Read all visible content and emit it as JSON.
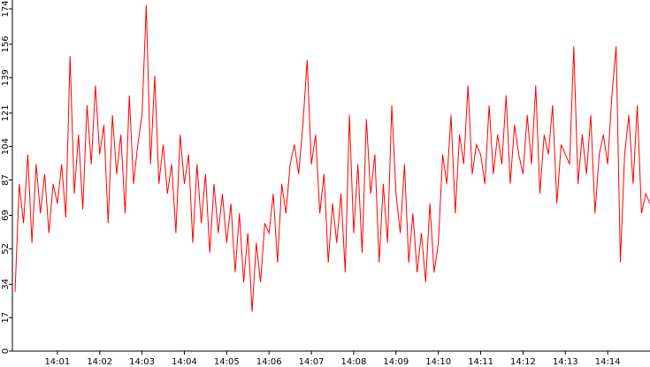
{
  "chart_data": {
    "type": "line",
    "color": "#ff0000",
    "x": [
      0,
      0.1,
      0.2,
      0.3,
      0.4,
      0.5,
      0.6,
      0.7,
      0.8,
      0.9,
      1,
      1.1,
      1.2,
      1.3,
      1.4,
      1.5,
      1.6,
      1.7,
      1.8,
      1.9,
      2,
      2.1,
      2.2,
      2.3,
      2.4,
      2.5,
      2.6,
      2.7,
      2.8,
      2.9,
      3,
      3.1,
      3.2,
      3.3,
      3.4,
      3.5,
      3.6,
      3.7,
      3.8,
      3.9,
      4,
      4.1,
      4.2,
      4.3,
      4.4,
      4.5,
      4.6,
      4.7,
      4.8,
      4.9,
      5,
      5.1,
      5.2,
      5.3,
      5.4,
      5.5,
      5.6,
      5.7,
      5.8,
      5.9,
      6,
      6.1,
      6.2,
      6.3,
      6.4,
      6.5,
      6.6,
      6.7,
      6.8,
      6.9,
      7,
      7.1,
      7.2,
      7.3,
      7.4,
      7.5,
      7.6,
      7.7,
      7.8,
      7.9,
      8,
      8.1,
      8.2,
      8.3,
      8.4,
      8.5,
      8.6,
      8.7,
      8.8,
      8.9,
      9,
      9.1,
      9.2,
      9.3,
      9.4,
      9.5,
      9.6,
      9.7,
      9.8,
      9.9,
      10,
      10.1,
      10.2,
      10.3,
      10.4,
      10.5,
      10.6,
      10.7,
      10.8,
      10.9,
      11,
      11.1,
      11.2,
      11.3,
      11.4,
      11.5,
      11.6,
      11.7,
      11.8,
      11.9,
      12,
      12.1,
      12.2,
      12.3,
      12.4,
      12.5,
      12.6,
      12.7,
      12.8,
      12.9,
      13,
      13.1,
      13.2,
      13.3,
      13.4,
      13.5,
      13.6,
      13.7,
      13.8,
      13.9,
      14,
      14.1,
      14.2,
      14.3,
      14.4,
      14.5,
      14.6,
      14.7,
      14.8,
      14.9,
      15
    ],
    "values": [
      30,
      85,
      65,
      100,
      55,
      95,
      70,
      90,
      60,
      85,
      75,
      95,
      68,
      150,
      80,
      110,
      72,
      125,
      95,
      135,
      100,
      115,
      65,
      120,
      90,
      110,
      70,
      130,
      85,
      105,
      120,
      176,
      95,
      140,
      85,
      105,
      80,
      95,
      60,
      110,
      85,
      100,
      55,
      95,
      65,
      90,
      50,
      85,
      60,
      80,
      55,
      75,
      40,
      70,
      35,
      60,
      20,
      55,
      35,
      65,
      60,
      80,
      45,
      85,
      70,
      95,
      105,
      90,
      115,
      148,
      95,
      110,
      70,
      90,
      45,
      75,
      55,
      80,
      40,
      120,
      60,
      95,
      50,
      118,
      80,
      100,
      45,
      85,
      55,
      125,
      80,
      60,
      95,
      45,
      70,
      40,
      60,
      35,
      75,
      40,
      55,
      100,
      85,
      120,
      70,
      110,
      95,
      135,
      90,
      105,
      100,
      85,
      125,
      90,
      110,
      95,
      130,
      85,
      115,
      100,
      90,
      120,
      95,
      135,
      80,
      110,
      100,
      125,
      75,
      105,
      100,
      95,
      155,
      85,
      110,
      90,
      120,
      70,
      100,
      110,
      95,
      130,
      155,
      45,
      100,
      120,
      85,
      125,
      70,
      80,
      75
    ],
    "xlim": [
      0,
      15
    ],
    "xticks": [
      {
        "value": 1,
        "label": "14:01"
      },
      {
        "value": 2,
        "label": "14:02"
      },
      {
        "value": 3,
        "label": "14:03"
      },
      {
        "value": 4,
        "label": "14:04"
      },
      {
        "value": 5,
        "label": "14:05"
      },
      {
        "value": 6,
        "label": "14:06"
      },
      {
        "value": 7,
        "label": "14:07"
      },
      {
        "value": 8,
        "label": "14:08"
      },
      {
        "value": 9,
        "label": "14:09"
      },
      {
        "value": 10,
        "label": "14:10"
      },
      {
        "value": 11,
        "label": "14:11"
      },
      {
        "value": 12,
        "label": "14:12"
      },
      {
        "value": 13,
        "label": "14:13"
      },
      {
        "value": 14,
        "label": "14:14"
      }
    ],
    "ylim": [
      0,
      174
    ],
    "yticks": [
      0,
      17,
      34,
      52,
      69,
      87,
      104,
      121,
      139,
      156,
      174
    ]
  }
}
